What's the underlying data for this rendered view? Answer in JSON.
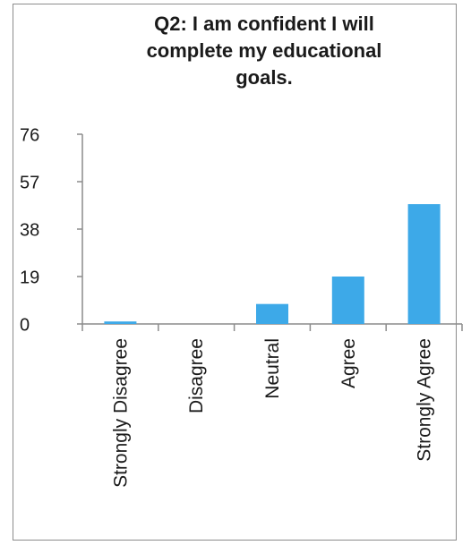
{
  "chart_data": {
    "type": "bar",
    "title_lines": [
      "Q2: I am confident I will",
      "complete my educational",
      "goals."
    ],
    "categories": [
      "Strongly Disagree",
      "Disagree",
      "Neutral",
      "Agree",
      "Strongly Agree"
    ],
    "values": [
      1,
      0,
      8,
      19,
      48
    ],
    "yticks": [
      0,
      19,
      38,
      57,
      76
    ],
    "ylim": [
      0,
      76
    ],
    "grid": false,
    "legend": "none",
    "colors": {
      "bar": "#3da9e8",
      "axis": "#8c8c8c",
      "text": "#1a1a1a"
    }
  }
}
